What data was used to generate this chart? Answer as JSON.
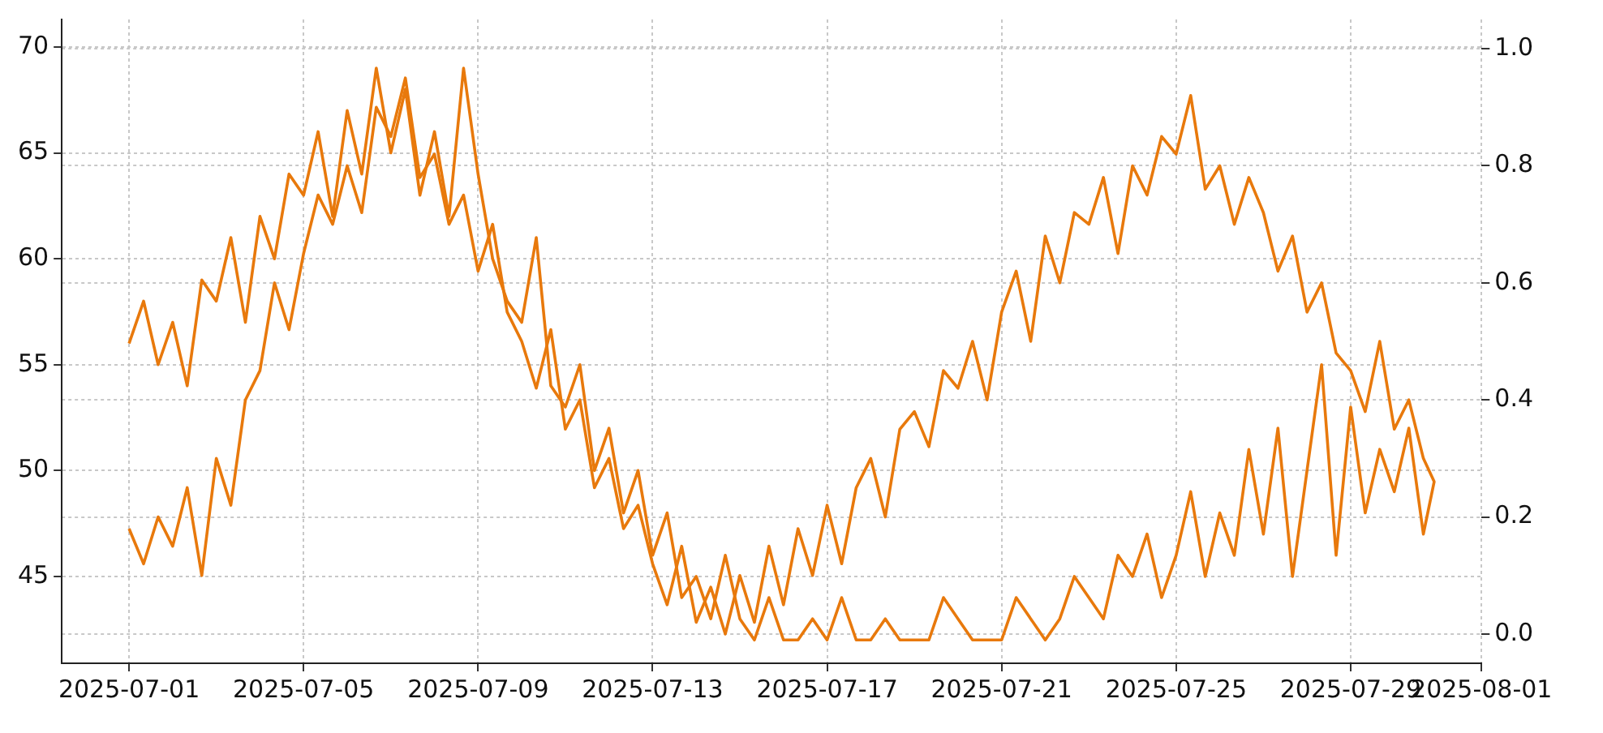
{
  "chart_data": {
    "type": "line",
    "x": [
      "2025-07-01T00:00",
      "2025-07-01T08:00",
      "2025-07-01T16:00",
      "2025-07-02T00:00",
      "2025-07-02T08:00",
      "2025-07-02T16:00",
      "2025-07-03T00:00",
      "2025-07-03T08:00",
      "2025-07-03T16:00",
      "2025-07-04T00:00",
      "2025-07-04T08:00",
      "2025-07-04T16:00",
      "2025-07-05T00:00",
      "2025-07-05T08:00",
      "2025-07-05T16:00",
      "2025-07-06T00:00",
      "2025-07-06T08:00",
      "2025-07-06T16:00",
      "2025-07-07T00:00",
      "2025-07-07T08:00",
      "2025-07-07T16:00",
      "2025-07-08T00:00",
      "2025-07-08T08:00",
      "2025-07-08T16:00",
      "2025-07-09T00:00",
      "2025-07-09T08:00",
      "2025-07-09T16:00",
      "2025-07-10T00:00",
      "2025-07-10T08:00",
      "2025-07-10T16:00",
      "2025-07-11T00:00",
      "2025-07-11T08:00",
      "2025-07-11T16:00",
      "2025-07-12T00:00",
      "2025-07-12T08:00",
      "2025-07-12T16:00",
      "2025-07-13T00:00",
      "2025-07-13T08:00",
      "2025-07-13T16:00",
      "2025-07-14T00:00",
      "2025-07-14T08:00",
      "2025-07-14T16:00",
      "2025-07-15T00:00",
      "2025-07-15T08:00",
      "2025-07-15T16:00",
      "2025-07-16T00:00",
      "2025-07-16T08:00",
      "2025-07-16T16:00",
      "2025-07-17T00:00",
      "2025-07-17T08:00",
      "2025-07-17T16:00",
      "2025-07-18T00:00",
      "2025-07-18T08:00",
      "2025-07-18T16:00",
      "2025-07-19T00:00",
      "2025-07-19T08:00",
      "2025-07-19T16:00",
      "2025-07-20T00:00",
      "2025-07-20T08:00",
      "2025-07-20T16:00",
      "2025-07-21T00:00",
      "2025-07-21T08:00",
      "2025-07-21T16:00",
      "2025-07-22T00:00",
      "2025-07-22T08:00",
      "2025-07-22T16:00",
      "2025-07-23T00:00",
      "2025-07-23T08:00",
      "2025-07-23T16:00",
      "2025-07-24T00:00",
      "2025-07-24T08:00",
      "2025-07-24T16:00",
      "2025-07-25T00:00",
      "2025-07-25T08:00",
      "2025-07-25T16:00",
      "2025-07-26T00:00",
      "2025-07-26T08:00",
      "2025-07-26T16:00",
      "2025-07-27T00:00",
      "2025-07-27T08:00",
      "2025-07-27T16:00",
      "2025-07-28T00:00",
      "2025-07-28T08:00",
      "2025-07-28T16:00",
      "2025-07-29T00:00",
      "2025-07-29T08:00",
      "2025-07-29T16:00",
      "2025-07-30T00:00",
      "2025-07-30T08:00",
      "2025-07-30T16:00",
      "2025-07-30T22:00"
    ],
    "series": [
      {
        "color": "#e8790c",
        "values": [
          56,
          58,
          55,
          57,
          54,
          59,
          58,
          61,
          57,
          62,
          60,
          64,
          63,
          66,
          62,
          67,
          64,
          69,
          65,
          68,
          63,
          66,
          62,
          69,
          64,
          60,
          58,
          57,
          61,
          54,
          53,
          55,
          50,
          52,
          48,
          50,
          46,
          48,
          44,
          45,
          43,
          46,
          43,
          42,
          44,
          42,
          42,
          43,
          42,
          44,
          42,
          42,
          43,
          42,
          42,
          42,
          44,
          43,
          42,
          42,
          42,
          44,
          43,
          42,
          43,
          45,
          44,
          43,
          46,
          45,
          47,
          44,
          46,
          49,
          45,
          48,
          46,
          51,
          47,
          52,
          45,
          50,
          55,
          46,
          53,
          48,
          51,
          49,
          52,
          47,
          49.5
        ]
      },
      {
        "color": "#e8790c",
        "axis": "y2",
        "values": [
          0.18,
          0.12,
          0.2,
          0.15,
          0.25,
          0.1,
          0.3,
          0.22,
          0.4,
          0.45,
          0.6,
          0.52,
          0.65,
          0.75,
          0.7,
          0.8,
          0.72,
          0.9,
          0.85,
          0.95,
          0.78,
          0.82,
          0.7,
          0.75,
          0.62,
          0.7,
          0.55,
          0.5,
          0.42,
          0.52,
          0.35,
          0.4,
          0.25,
          0.3,
          0.18,
          0.22,
          0.12,
          0.05,
          0.15,
          0.02,
          0.08,
          0,
          0.1,
          0.02,
          0.15,
          0.05,
          0.18,
          0.1,
          0.22,
          0.12,
          0.25,
          0.3,
          0.2,
          0.35,
          0.38,
          0.32,
          0.45,
          0.42,
          0.5,
          0.4,
          0.55,
          0.62,
          0.5,
          0.68,
          0.6,
          0.72,
          0.7,
          0.78,
          0.65,
          0.8,
          0.75,
          0.85,
          0.82,
          0.92,
          0.76,
          0.8,
          0.7,
          0.78,
          0.72,
          0.62,
          0.68,
          0.55,
          0.6,
          0.48,
          0.45,
          0.38,
          0.5,
          0.35,
          0.4,
          0.3,
          0.26
        ]
      }
    ],
    "xlim": [
      "2025-06-29T11:00",
      "2025-08-01T00:00"
    ],
    "xticks": [
      "2025-07-01",
      "2025-07-05",
      "2025-07-09",
      "2025-07-13",
      "2025-07-17",
      "2025-07-21",
      "2025-07-25",
      "2025-07-29",
      "2025-08-01"
    ],
    "ylim": [
      40.9,
      71.3
    ],
    "yticks": [
      45,
      50,
      55,
      60,
      65,
      70
    ],
    "y2lim": [
      -0.05,
      1.05
    ],
    "y2ticks": [
      {
        "value": 0,
        "label": "0.0"
      },
      {
        "value": 0.2,
        "label": "0.2"
      },
      {
        "value": 0.4,
        "label": "0.4"
      },
      {
        "value": 0.6,
        "label": "0.6"
      },
      {
        "value": 0.8,
        "label": "0.8"
      },
      {
        "value": 1,
        "label": "1.0"
      }
    ],
    "grid": true,
    "marker": "none",
    "line_style": "solid",
    "legend": false
  }
}
